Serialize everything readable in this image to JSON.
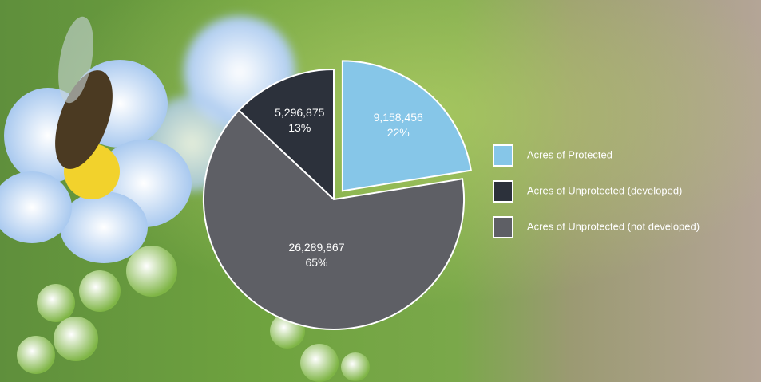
{
  "chart_data": {
    "type": "pie",
    "series": [
      {
        "name": "Acres of Protected",
        "color": "#86c6e8",
        "value": 9158456,
        "value_label": "9,158,456",
        "percent": 22,
        "percent_label": "22%"
      },
      {
        "name": "Acres of Unprotected (developed)",
        "color": "#2c313b",
        "value": 5296875,
        "value_label": "5,296,875",
        "percent": 13,
        "percent_label": "13%"
      },
      {
        "name": "Acres of Unprotected (not developed)",
        "color": "#5e5f65",
        "value": 26289867,
        "value_label": "26,289,867",
        "percent": 65,
        "percent_label": "65%"
      }
    ]
  }
}
